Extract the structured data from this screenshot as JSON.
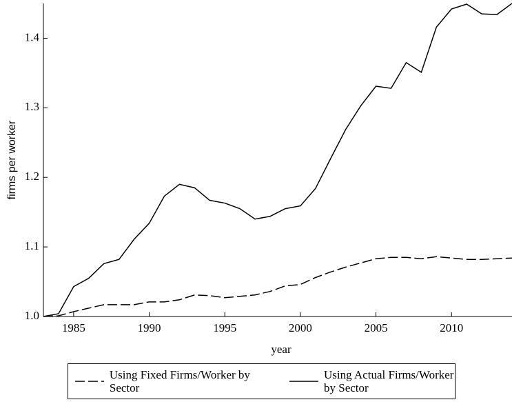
{
  "chart_data": {
    "type": "line",
    "x_label": "year",
    "y_label": "firms per worker",
    "x": [
      1983,
      1984,
      1985,
      1986,
      1987,
      1988,
      1989,
      1990,
      1991,
      1992,
      1993,
      1994,
      1995,
      1996,
      1997,
      1998,
      1999,
      2000,
      2001,
      2002,
      2003,
      2004,
      2005,
      2006,
      2007,
      2008,
      2009,
      2010,
      2011,
      2012,
      2013,
      2014
    ],
    "series": [
      {
        "name": "Using Fixed Firms/Worker by Sector",
        "color": "#000000",
        "dash": "dashed",
        "values": [
          1.0,
          1.001,
          1.007,
          1.012,
          1.017,
          1.017,
          1.017,
          1.021,
          1.021,
          1.024,
          1.031,
          1.03,
          1.027,
          1.029,
          1.031,
          1.036,
          1.044,
          1.046,
          1.056,
          1.064,
          1.071,
          1.077,
          1.083,
          1.085,
          1.085,
          1.083,
          1.086,
          1.084,
          1.082,
          1.082,
          1.083,
          1.084
        ]
      },
      {
        "name": "Using Actual Firms/Worker by Sector",
        "color": "#000000",
        "dash": "solid",
        "values": [
          1.0,
          1.004,
          1.043,
          1.055,
          1.076,
          1.082,
          1.111,
          1.134,
          1.173,
          1.19,
          1.185,
          1.167,
          1.163,
          1.155,
          1.14,
          1.144,
          1.155,
          1.159,
          1.184,
          1.227,
          1.269,
          1.303,
          1.331,
          1.328,
          1.365,
          1.351,
          1.416,
          1.442,
          1.449,
          1.435,
          1.434,
          1.45
        ]
      }
    ],
    "xlim": [
      1983,
      2014
    ],
    "ylim": [
      1,
      1.45
    ],
    "xticks": [
      1985,
      1990,
      1995,
      2000,
      2005,
      2010
    ],
    "yticks": [
      {
        "value": 1,
        "label": "1.0"
      },
      1.1,
      1.2,
      1.3,
      1.4
    ],
    "grid": false
  }
}
